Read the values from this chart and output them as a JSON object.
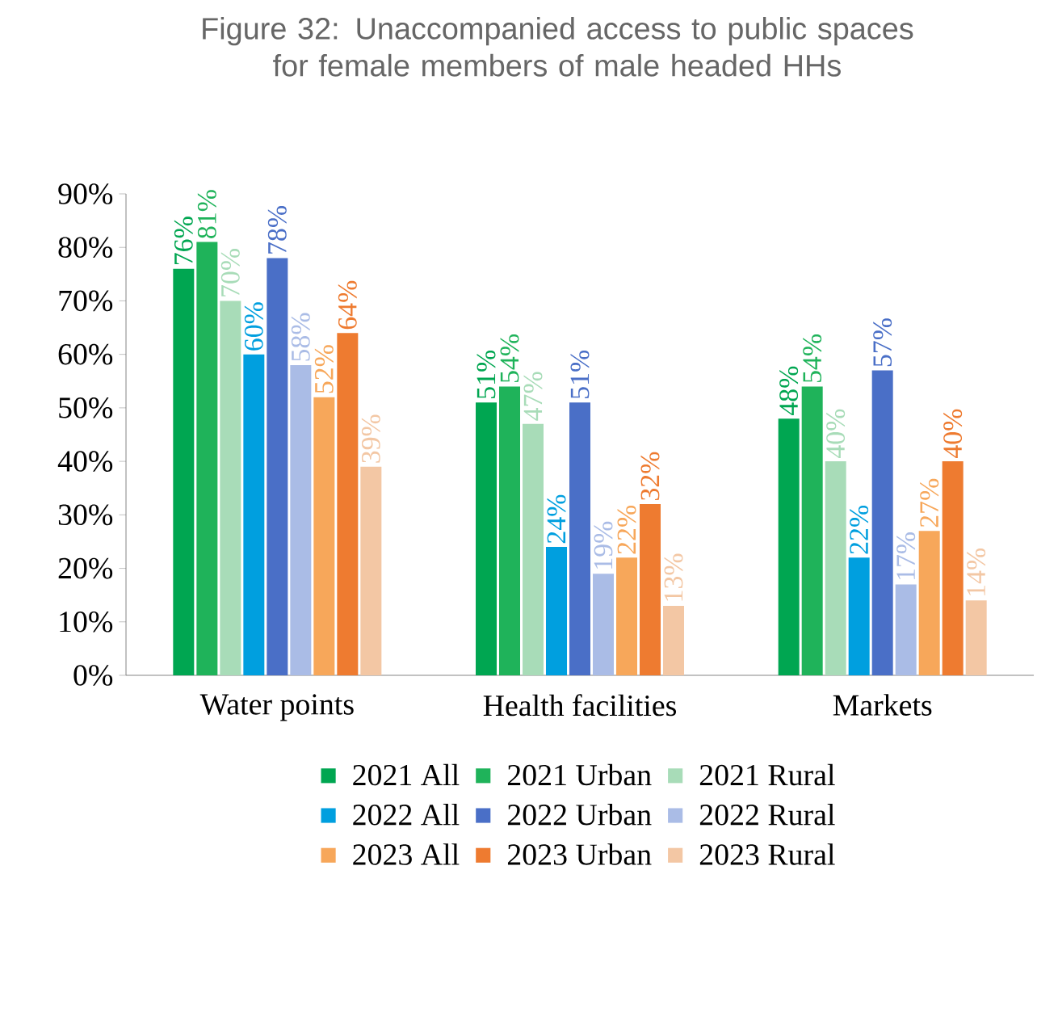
{
  "chart_data": {
    "type": "bar",
    "title": "Figure 32: Unaccompanied access to public spaces\nfor female members of male headed HHs",
    "categories": [
      "Water points",
      "Health facilities",
      "Markets"
    ],
    "series": [
      {
        "name": "2021 All",
        "color": "#00a651",
        "values": [
          76,
          51,
          48
        ],
        "value_labels": [
          "76%",
          "51%",
          "48%"
        ]
      },
      {
        "name": "2021 Urban",
        "color": "#1fb35a",
        "values": [
          81,
          54,
          54
        ],
        "value_labels": [
          "81%",
          "54%",
          "54%"
        ]
      },
      {
        "name": "2021 Rural",
        "color": "#a8dcb8",
        "values": [
          70,
          47,
          40
        ],
        "value_labels": [
          "70%",
          "47%",
          "40%"
        ]
      },
      {
        "name": "2022 All",
        "color": "#009fdf",
        "values": [
          60,
          24,
          22
        ],
        "value_labels": [
          "60%",
          "24%",
          "22%"
        ]
      },
      {
        "name": "2022 Urban",
        "color": "#4a6fc7",
        "values": [
          78,
          51,
          57
        ],
        "value_labels": [
          "78%",
          "51%",
          "57%"
        ]
      },
      {
        "name": "2022 Rural",
        "color": "#aabce6",
        "values": [
          58,
          19,
          17
        ],
        "value_labels": [
          "58%",
          "19%",
          "17%"
        ]
      },
      {
        "name": "2023 All",
        "color": "#f7a75a",
        "values": [
          52,
          22,
          27
        ],
        "value_labels": [
          "52%",
          "22%",
          "27%"
        ]
      },
      {
        "name": "2023 Urban",
        "color": "#ee7b30",
        "values": [
          64,
          32,
          40
        ],
        "value_labels": [
          "64%",
          "32%",
          "40%"
        ]
      },
      {
        "name": "2023 Rural",
        "color": "#f3c7a4",
        "values": [
          39,
          13,
          14
        ],
        "value_labels": [
          "39%",
          "13%",
          "14%"
        ]
      }
    ],
    "ylim": [
      0,
      90
    ],
    "yticks": [
      {
        "value": 0,
        "label": "0%"
      },
      {
        "value": 10,
        "label": "10%"
      },
      {
        "value": 20,
        "label": "20%"
      },
      {
        "value": 30,
        "label": "30%"
      },
      {
        "value": 40,
        "label": "40%"
      },
      {
        "value": 50,
        "label": "50%"
      },
      {
        "value": 60,
        "label": "60%"
      },
      {
        "value": 70,
        "label": "70%"
      },
      {
        "value": 80,
        "label": "80%"
      },
      {
        "value": 90,
        "label": "90%"
      }
    ],
    "legend": "bottom",
    "grid": false
  }
}
